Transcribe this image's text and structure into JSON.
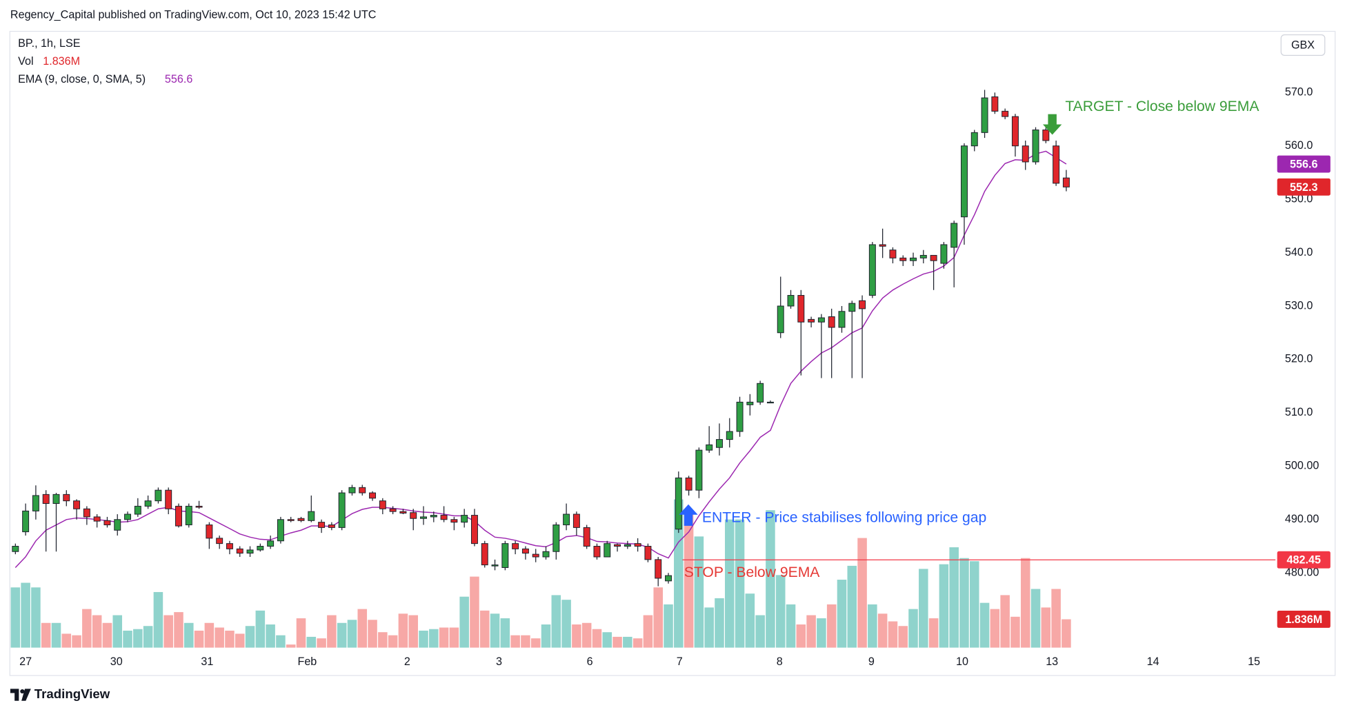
{
  "header": {
    "publisher": "Regency_Capital published on TradingView.com, Oct 10, 2023 15:42 UTC"
  },
  "chart_data": {
    "type": "candlestick",
    "symbol": "BP., 1h, LSE",
    "currency": "GBX",
    "up_color": "#2f9e44",
    "down_color": "#e0262b",
    "ohlc": [
      [
        484,
        485.5,
        483.5,
        485
      ],
      [
        487.7,
        493,
        487,
        491.6
      ],
      [
        491.6,
        496.4,
        490,
        494.5
      ],
      [
        494.7,
        495.5,
        484,
        493
      ],
      [
        493,
        495,
        484,
        494.7
      ],
      [
        494.7,
        495.5,
        492.5,
        493.5
      ],
      [
        493.5,
        493.8,
        490,
        492
      ],
      [
        492,
        492.5,
        489,
        490.5
      ],
      [
        490.5,
        491,
        488.5,
        489.7
      ],
      [
        489.8,
        490.5,
        488.5,
        489
      ],
      [
        488,
        491,
        487,
        490
      ],
      [
        490,
        491.5,
        489.5,
        491
      ],
      [
        491,
        494,
        490.5,
        492.5
      ],
      [
        492.5,
        494.5,
        492,
        493.5
      ],
      [
        493.5,
        496,
        493,
        495.5
      ],
      [
        495.5,
        496,
        491,
        492
      ],
      [
        492.5,
        493,
        488.5,
        488.8
      ],
      [
        489,
        493,
        488.5,
        492.5
      ],
      [
        492.5,
        493.5,
        492,
        492.3
      ],
      [
        489,
        489.5,
        484.5,
        486.5
      ],
      [
        486.5,
        487,
        484.5,
        485.5
      ],
      [
        485.5,
        486,
        483.5,
        484.5
      ],
      [
        484.5,
        485,
        483,
        483.7
      ],
      [
        483.7,
        485,
        483,
        484.3
      ],
      [
        484.3,
        485.5,
        484,
        485
      ],
      [
        485,
        487,
        484.5,
        486
      ],
      [
        486,
        490.5,
        485.5,
        490
      ],
      [
        490,
        490.5,
        489.5,
        489.8
      ],
      [
        490.2,
        490.5,
        489.5,
        489.8
      ],
      [
        489.8,
        494.5,
        489.5,
        491.5
      ],
      [
        489.5,
        490,
        487.5,
        488.5
      ],
      [
        489,
        489.5,
        488,
        488.5
      ],
      [
        488.5,
        495.5,
        488,
        495
      ],
      [
        495,
        496.5,
        494.5,
        496
      ],
      [
        496,
        496.5,
        494.5,
        495
      ],
      [
        495,
        495.3,
        493.5,
        494
      ],
      [
        493.5,
        494,
        491,
        492
      ],
      [
        492,
        492.5,
        491,
        491.5
      ],
      [
        491.5,
        492,
        491,
        491.2
      ],
      [
        491.3,
        492,
        488,
        490.2
      ],
      [
        490.2,
        492.5,
        489,
        490.5
      ],
      [
        490.5,
        491.5,
        489.5,
        490.8
      ],
      [
        490.8,
        492.5,
        489.5,
        490
      ],
      [
        490,
        490.5,
        488,
        489.5
      ],
      [
        489.5,
        492,
        488.5,
        490.8
      ],
      [
        490.8,
        492,
        485,
        485.5
      ],
      [
        485.5,
        486,
        481,
        481.5
      ],
      [
        481.3,
        482.5,
        480.5,
        481.5
      ],
      [
        481,
        486,
        480.5,
        485.5
      ],
      [
        485.5,
        486,
        483.5,
        484.5
      ],
      [
        484.5,
        485,
        482.5,
        483.7
      ],
      [
        483.5,
        484.5,
        482,
        483
      ],
      [
        483,
        485,
        482.5,
        484
      ],
      [
        484,
        489.5,
        482.5,
        489
      ],
      [
        489,
        493,
        488,
        491
      ],
      [
        491,
        491.5,
        487,
        488.5
      ],
      [
        488.5,
        489,
        484.5,
        485
      ],
      [
        485,
        485.5,
        482.5,
        483
      ],
      [
        483,
        486,
        483,
        485.5
      ],
      [
        485.3,
        485.5,
        484,
        485
      ],
      [
        485,
        486,
        484.5,
        485.3
      ],
      [
        485.5,
        486.5,
        484,
        485
      ],
      [
        485,
        485.5,
        482,
        482.5
      ],
      [
        482.5,
        483,
        477.5,
        479
      ],
      [
        478.5,
        480,
        478,
        479.5
      ],
      [
        488.2,
        499,
        487.5,
        497.8
      ],
      [
        497.8,
        498.2,
        494.5,
        495.5
      ],
      [
        495.5,
        503.5,
        494,
        503
      ],
      [
        503,
        507.5,
        502.5,
        504
      ],
      [
        503.5,
        508,
        502,
        505
      ],
      [
        505,
        509,
        503.5,
        506.5
      ],
      [
        506.5,
        513,
        505.5,
        512
      ],
      [
        511.5,
        513.5,
        509.5,
        512
      ],
      [
        512,
        516,
        511.5,
        515.5
      ],
      [
        512,
        512.3,
        511.8,
        512
      ],
      [
        525,
        535.5,
        524,
        530
      ],
      [
        530,
        533,
        529.5,
        532
      ],
      [
        532,
        533,
        517,
        527
      ],
      [
        527.5,
        528,
        526,
        527
      ],
      [
        527,
        528.5,
        516.5,
        527.8
      ],
      [
        528,
        529.5,
        516.5,
        526
      ],
      [
        526,
        530,
        525,
        529
      ],
      [
        529,
        531,
        516.5,
        530.5
      ],
      [
        531,
        532,
        516.5,
        529.5
      ],
      [
        532,
        542,
        531.5,
        541.5
      ],
      [
        541.5,
        544.5,
        539,
        541.2
      ],
      [
        540.5,
        541,
        538,
        539
      ],
      [
        539,
        539.5,
        537.5,
        538.5
      ],
      [
        538.5,
        540,
        537.5,
        539
      ],
      [
        539,
        540.5,
        538,
        539.5
      ],
      [
        539.5,
        539.5,
        533,
        538.5
      ],
      [
        538,
        542,
        537,
        541.5
      ],
      [
        541,
        546,
        533.5,
        545.5
      ],
      [
        546.7,
        560.5,
        541.5,
        560
      ],
      [
        560,
        563,
        559,
        562.5
      ],
      [
        562.5,
        570.5,
        561.5,
        569
      ],
      [
        569.2,
        570,
        566,
        566.5
      ],
      [
        566.5,
        567,
        565,
        565.5
      ],
      [
        565.5,
        566,
        558,
        560
      ],
      [
        560,
        561,
        555.5,
        557
      ],
      [
        557,
        563.5,
        556.5,
        563
      ],
      [
        563,
        563.5,
        560.5,
        561
      ],
      [
        560,
        561,
        552.5,
        553
      ],
      [
        554,
        555.5,
        551.5,
        552.3
      ]
    ],
    "xlim": [
      -0.5,
      123
    ],
    "xticks": [
      {
        "value": 1,
        "label": "27"
      },
      {
        "value": 9.9,
        "label": "30"
      },
      {
        "value": 18.8,
        "label": "31"
      },
      {
        "value": 28.6,
        "label": "Feb"
      },
      {
        "value": 38.4,
        "label": "2"
      },
      {
        "value": 47.4,
        "label": "3"
      },
      {
        "value": 56.3,
        "label": "6"
      },
      {
        "value": 65.1,
        "label": "7"
      },
      {
        "value": 74.9,
        "label": "8"
      },
      {
        "value": 83.9,
        "label": "9"
      },
      {
        "value": 92.8,
        "label": "10"
      },
      {
        "value": 101.6,
        "label": "13"
      },
      {
        "value": 111.5,
        "label": "14"
      },
      {
        "value": 121.4,
        "label": "15"
      }
    ],
    "ylim": [
      465.2,
      580.9
    ],
    "yticks": [
      {
        "value": 480,
        "label": "480.00"
      },
      {
        "value": 490,
        "label": "490.00"
      },
      {
        "value": 500,
        "label": "500.00"
      },
      {
        "value": 510,
        "label": "510.0"
      },
      {
        "value": 520,
        "label": "520.0"
      },
      {
        "value": 530,
        "label": "530.0"
      },
      {
        "value": 540,
        "label": "540.0"
      },
      {
        "value": 550,
        "label": "550.0"
      },
      {
        "value": 560,
        "label": "560.0"
      },
      {
        "value": 570,
        "label": "570.0"
      }
    ],
    "volume": {
      "name": "Vol",
      "up_color": "#8fd3cc",
      "down_color": "#f7a8a6",
      "last_label": "1.836M",
      "ylim": [
        0,
        11000000
      ],
      "values": [
        3900000,
        4200000,
        3900000,
        1600000,
        1600000,
        900000,
        800000,
        2500000,
        2100000,
        1600000,
        2100000,
        1100000,
        1200000,
        1400000,
        3600000,
        2100000,
        2300000,
        1600000,
        1100000,
        1600000,
        1300000,
        1100000,
        900000,
        1400000,
        2400000,
        1500000,
        800000,
        200000,
        1900000,
        700000,
        600000,
        2100000,
        1600000,
        1800000,
        2500000,
        1800000,
        1000000,
        800000,
        2200000,
        2100000,
        1100000,
        1200000,
        1300000,
        1300000,
        3300000,
        4600000,
        2400000,
        2200000,
        1900000,
        800000,
        800000,
        600000,
        1500000,
        3400000,
        3100000,
        1500000,
        1600000,
        1200000,
        1000000,
        700000,
        700000,
        600000,
        2100000,
        3900000,
        2800000,
        9600000,
        8800000,
        7200000,
        2600000,
        3200000,
        8300000,
        8300000,
        3500000,
        2100000,
        8900000,
        4700000,
        2800000,
        1500000,
        2100000,
        1900000,
        2800000,
        4400000,
        5300000,
        7100000,
        2800000,
        2200000,
        1700000,
        1400000,
        2500000,
        5100000,
        1900000,
        5400000,
        6500000,
        5800000,
        5600000,
        2900000,
        2500000,
        3400000,
        2000000,
        5800000,
        3800000,
        2600000,
        3800000,
        1836000
      ]
    },
    "ema": {
      "name": "EMA (9, close, 0, SMA, 5)",
      "color": "#9c27b0",
      "values": [
        481,
        483,
        486,
        488,
        489,
        490,
        490.3,
        490.2,
        490,
        489.8,
        489.5,
        489.6,
        490,
        491,
        492,
        492.3,
        491.6,
        491.5,
        491.3,
        490.3,
        489.3,
        488.3,
        487.3,
        486.7,
        486.3,
        486.2,
        486.9,
        487.5,
        488,
        488.8,
        488.8,
        488.7,
        489.9,
        491.1,
        491.9,
        492.3,
        492.3,
        492.1,
        491.9,
        491.6,
        491.4,
        491.3,
        491,
        490.7,
        490.7,
        489.7,
        488,
        486.7,
        486.5,
        486.1,
        485.6,
        485.1,
        484.9,
        485.7,
        486.8,
        487,
        486.6,
        485.9,
        485.8,
        485.6,
        485.5,
        485.4,
        484.8,
        483.6,
        482.8,
        485.8,
        487.7,
        490.7,
        493.3,
        495.7,
        497.8,
        500.6,
        502.9,
        505.4,
        506.7,
        511.4,
        515.5,
        517.8,
        519.6,
        521.2,
        522.2,
        523.6,
        525,
        525.9,
        529.1,
        531.5,
        533,
        534.1,
        535.1,
        536,
        536.5,
        537.5,
        539.1,
        543.3,
        547.1,
        551.5,
        554.5,
        556.7,
        557.4,
        557.3,
        558.5,
        559,
        557.8,
        556.6
      ]
    },
    "stop_line": {
      "value": 482.45,
      "color": "#f23645"
    },
    "annotations": [
      {
        "text": "TARGET - Close below 9EMA",
        "color": "#3a9d3a"
      },
      {
        "text": "ENTER - Price stabilises following price gap",
        "color": "#2962ff"
      },
      {
        "text": "STOP - Below 9EMA",
        "color": "#e53935"
      }
    ]
  },
  "footer": {
    "brand": "TradingView"
  }
}
